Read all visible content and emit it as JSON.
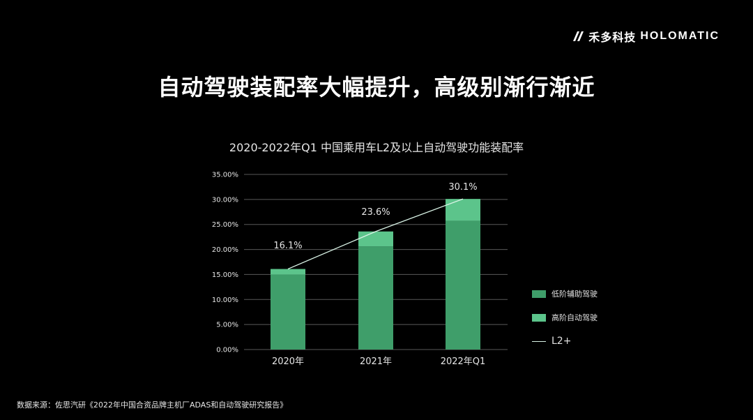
{
  "brand": {
    "cn": "禾多科技",
    "en": "HOLOMATIC"
  },
  "headline": "自动驾驶装配率大幅提升，高级别渐行渐近",
  "source": "数据来源：佐思汽研《2022年中国合资品牌主机厂ADAS和自动驾驶研究报告》",
  "colors": {
    "low": "#3f9e6a",
    "high": "#5cc48b",
    "line": "#d9f3e6",
    "grid": "#595959",
    "text": "#e6e6e6"
  },
  "legend": {
    "low": "低阶辅助驾驶",
    "high": "高阶自动驾驶",
    "line": "L2+"
  },
  "chart_data": {
    "type": "bar",
    "title": "2020-2022年Q1 中国乘用车L2及以上自动驾驶功能装配率",
    "categories": [
      "2020年",
      "2021年",
      "2022年Q1"
    ],
    "stacked": true,
    "series": [
      {
        "name": "低阶辅助驾驶",
        "type": "bar",
        "values": [
          15.0,
          20.6,
          25.7
        ]
      },
      {
        "name": "高阶自动驾驶",
        "type": "bar",
        "values": [
          1.1,
          3.0,
          4.4
        ]
      },
      {
        "name": "L2+",
        "type": "line",
        "values": [
          16.1,
          23.6,
          30.1
        ]
      }
    ],
    "data_labels": [
      "16.1%",
      "23.6%",
      "30.1%"
    ],
    "y_ticks": [
      "0.00%",
      "5.00%",
      "10.00%",
      "15.00%",
      "20.00%",
      "25.00%",
      "30.00%",
      "35.00%"
    ],
    "ylim": [
      0,
      35
    ],
    "grid": true,
    "legend_position": "right"
  }
}
